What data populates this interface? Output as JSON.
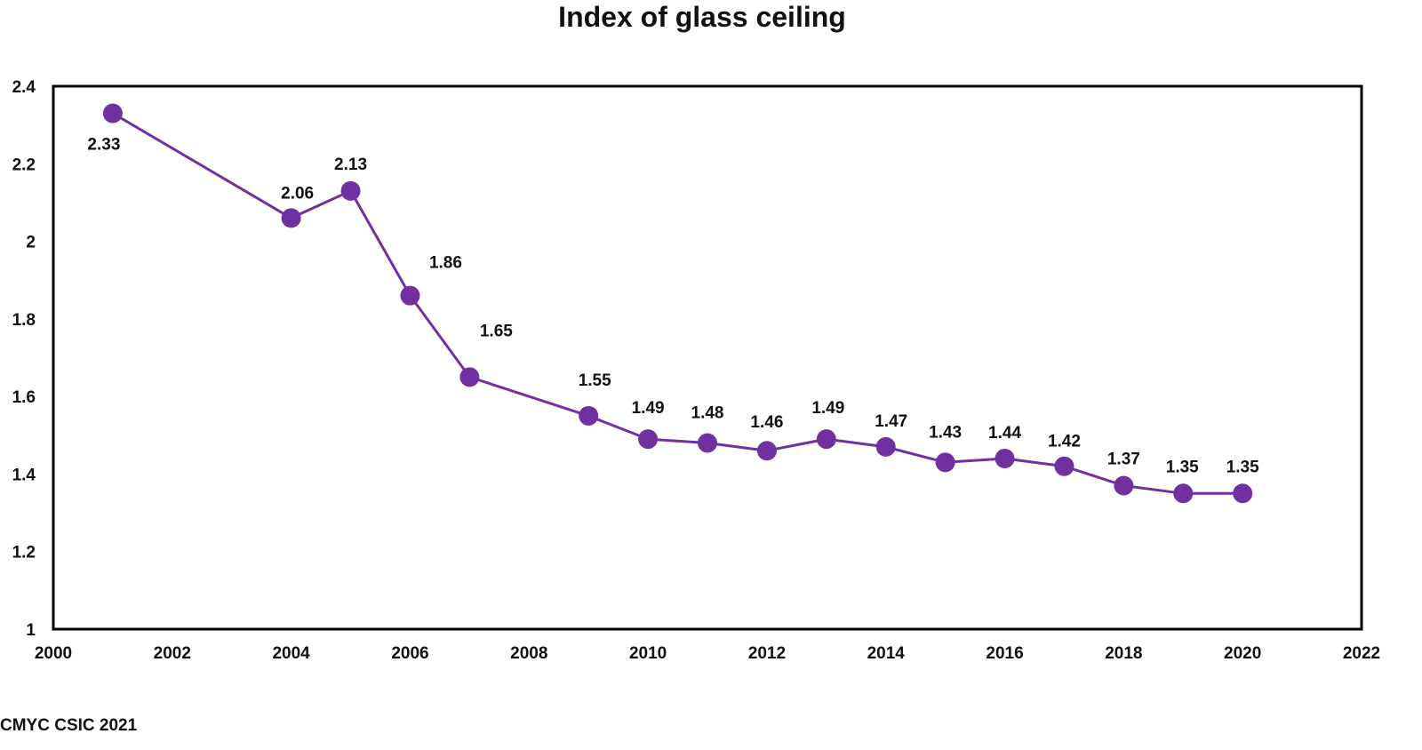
{
  "chart_data": {
    "type": "line",
    "title": "Index of glass ceiling",
    "xlabel": "",
    "ylabel": "",
    "xlim": [
      2000,
      2022
    ],
    "ylim": [
      1,
      2.4
    ],
    "x_ticks": [
      2000,
      2002,
      2004,
      2006,
      2008,
      2010,
      2012,
      2014,
      2016,
      2018,
      2020,
      2022
    ],
    "y_ticks": [
      1,
      1.2,
      1.4,
      1.6,
      1.8,
      2,
      2.2,
      2.4
    ],
    "y_tick_labels": [
      "1",
      "1.2",
      "1.4",
      "1.6",
      "1.8",
      "2",
      "2.2",
      "2.4"
    ],
    "grid": false,
    "legend": "none",
    "series": [
      {
        "color": "#7030A0",
        "x": [
          2001,
          2004,
          2005,
          2006,
          2007,
          2009,
          2010,
          2011,
          2012,
          2013,
          2014,
          2015,
          2016,
          2017,
          2018,
          2019,
          2020
        ],
        "values": [
          2.33,
          2.06,
          2.13,
          1.86,
          1.65,
          1.55,
          1.49,
          1.48,
          1.46,
          1.49,
          1.47,
          1.43,
          1.44,
          1.42,
          1.37,
          1.35,
          1.35
        ],
        "labels": [
          "2.33",
          "2.06",
          "2.13",
          "1.86",
          "1.65",
          "1.55",
          "1.49",
          "1.48",
          "1.46",
          "1.49",
          "1.47",
          "1.43",
          "1.44",
          "1.42",
          "1.37",
          "1.35",
          "1.35"
        ]
      }
    ]
  },
  "source_note": "CMYC CSIC 2021"
}
